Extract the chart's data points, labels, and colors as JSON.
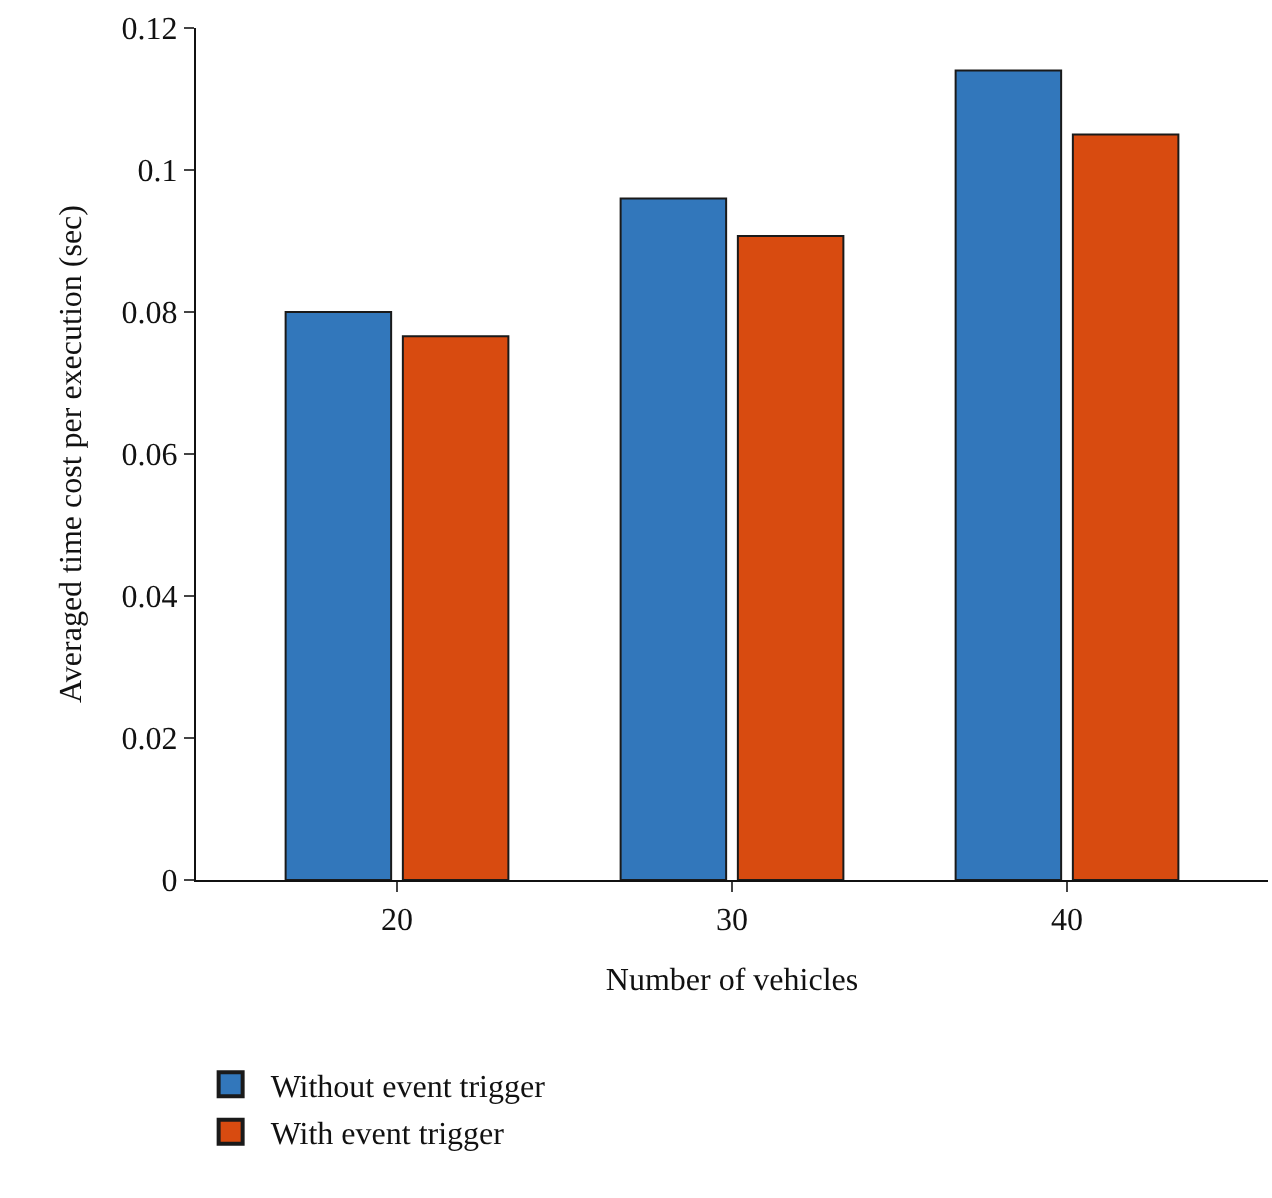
{
  "chart_data": {
    "type": "bar",
    "xlabel": "Number of vehicles",
    "ylabel": "Averaged time cost per execution (sec)",
    "categories": [
      "20",
      "30",
      "40"
    ],
    "series": [
      {
        "name": "Without event trigger",
        "color": "#3277bb",
        "values": [
          0.08,
          0.096,
          0.114
        ]
      },
      {
        "name": "With event trigger",
        "color": "#d84b10",
        "values": [
          0.0766,
          0.0907,
          0.105
        ]
      }
    ],
    "ylim": [
      0,
      0.12
    ],
    "yticks": [
      0,
      0.02,
      0.04,
      0.06,
      0.08,
      {
        "value": 0.1,
        "label": "0.1"
      },
      0.12
    ],
    "legend": "bottom left"
  }
}
